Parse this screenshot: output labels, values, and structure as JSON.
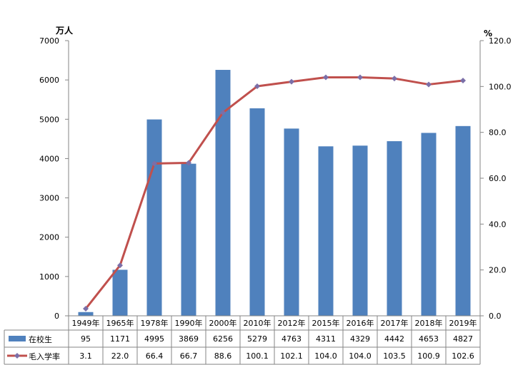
{
  "chart_data": {
    "type": "bar",
    "title": "",
    "categories": [
      "1949年",
      "1965年",
      "1978年",
      "1990年",
      "2000年",
      "2010年",
      "2012年",
      "2015年",
      "2016年",
      "2017年",
      "2018年",
      "2019年"
    ],
    "series": [
      {
        "name": "在校生",
        "type": "bar",
        "axis": "left",
        "color": "#4F81BD",
        "values": [
          95,
          1171,
          4995,
          3869,
          6256,
          5279,
          4763,
          4311,
          4329,
          4442,
          4653,
          4827
        ],
        "labels": [
          "95",
          "1171",
          "4995",
          "3869",
          "6256",
          "5279",
          "4763",
          "4311",
          "4329",
          "4442",
          "4653",
          "4827"
        ]
      },
      {
        "name": "毛入学率",
        "type": "line",
        "axis": "right",
        "color": "#C0504D",
        "marker_color": "#7B6FA8",
        "values": [
          3.1,
          22.0,
          66.4,
          66.7,
          88.6,
          100.1,
          102.1,
          104.0,
          104.0,
          103.5,
          100.9,
          102.6
        ],
        "labels": [
          "3.1",
          "22.0",
          "66.4",
          "66.7",
          "88.6",
          "100.1",
          "102.1",
          "104.0",
          "104.0",
          "103.5",
          "100.9",
          "102.6"
        ]
      }
    ],
    "y_left": {
      "unit": "万人",
      "range": [
        0,
        7000
      ],
      "ticks": [
        "0",
        "1000",
        "2000",
        "3000",
        "4000",
        "5000",
        "6000",
        "7000"
      ]
    },
    "y_right": {
      "unit": "%",
      "range": [
        0,
        120
      ],
      "ticks": [
        "0.0",
        "20.0",
        "40.0",
        "60.0",
        "80.0",
        "100.0",
        "120.0"
      ]
    },
    "grid": false,
    "legend": "data-table"
  }
}
